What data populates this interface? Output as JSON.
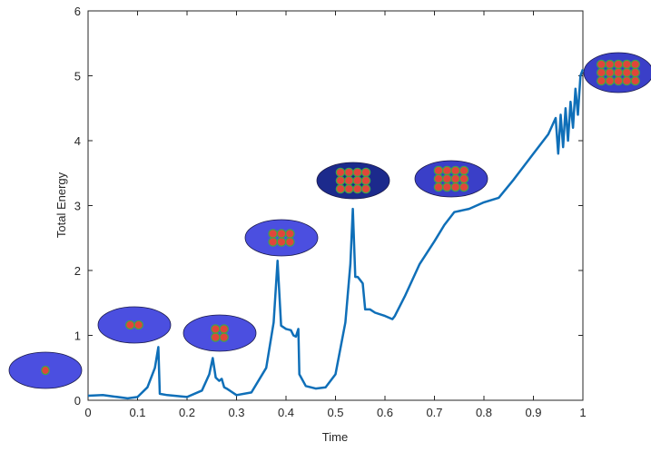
{
  "chart_data": {
    "type": "line",
    "xlabel": "Time",
    "ylabel": "Total Energy",
    "xlim": [
      0,
      1
    ],
    "ylim": [
      0,
      6
    ],
    "xticks": [
      0,
      0.1,
      0.2,
      0.3,
      0.4,
      0.5,
      0.6,
      0.7,
      0.8,
      0.9,
      1
    ],
    "yticks": [
      0,
      1,
      2,
      3,
      4,
      5,
      6
    ],
    "series": [
      {
        "color": "#0f6fb8",
        "x": [
          0,
          0.03,
          0.05,
          0.08,
          0.1,
          0.12,
          0.135,
          0.142,
          0.145,
          0.16,
          0.2,
          0.23,
          0.245,
          0.252,
          0.258,
          0.265,
          0.27,
          0.275,
          0.28,
          0.3,
          0.33,
          0.36,
          0.375,
          0.383,
          0.39,
          0.4,
          0.41,
          0.415,
          0.42,
          0.425,
          0.427,
          0.44,
          0.46,
          0.48,
          0.5,
          0.52,
          0.53,
          0.535,
          0.54,
          0.545,
          0.55,
          0.555,
          0.56,
          0.57,
          0.58,
          0.6,
          0.615,
          0.62,
          0.64,
          0.67,
          0.7,
          0.72,
          0.74,
          0.77,
          0.8,
          0.83,
          0.86,
          0.9,
          0.93,
          0.945,
          0.95,
          0.955,
          0.96,
          0.965,
          0.97,
          0.975,
          0.98,
          0.985,
          0.99,
          0.995,
          1
        ],
        "values": [
          0.07,
          0.08,
          0.06,
          0.03,
          0.05,
          0.2,
          0.5,
          0.82,
          0.1,
          0.08,
          0.05,
          0.15,
          0.4,
          0.65,
          0.35,
          0.3,
          0.33,
          0.2,
          0.18,
          0.08,
          0.12,
          0.5,
          1.2,
          2.15,
          1.15,
          1.1,
          1.08,
          1.0,
          0.98,
          1.1,
          0.4,
          0.22,
          0.18,
          0.2,
          0.4,
          1.2,
          2.1,
          2.95,
          1.9,
          1.9,
          1.85,
          1.8,
          1.4,
          1.4,
          1.35,
          1.3,
          1.25,
          1.3,
          1.6,
          2.1,
          2.45,
          2.7,
          2.9,
          2.95,
          3.05,
          3.12,
          3.4,
          3.8,
          4.1,
          4.35,
          3.8,
          4.4,
          3.9,
          4.5,
          4.0,
          4.6,
          4.2,
          4.8,
          4.4,
          5.0,
          5.1
        ]
      }
    ]
  }
}
